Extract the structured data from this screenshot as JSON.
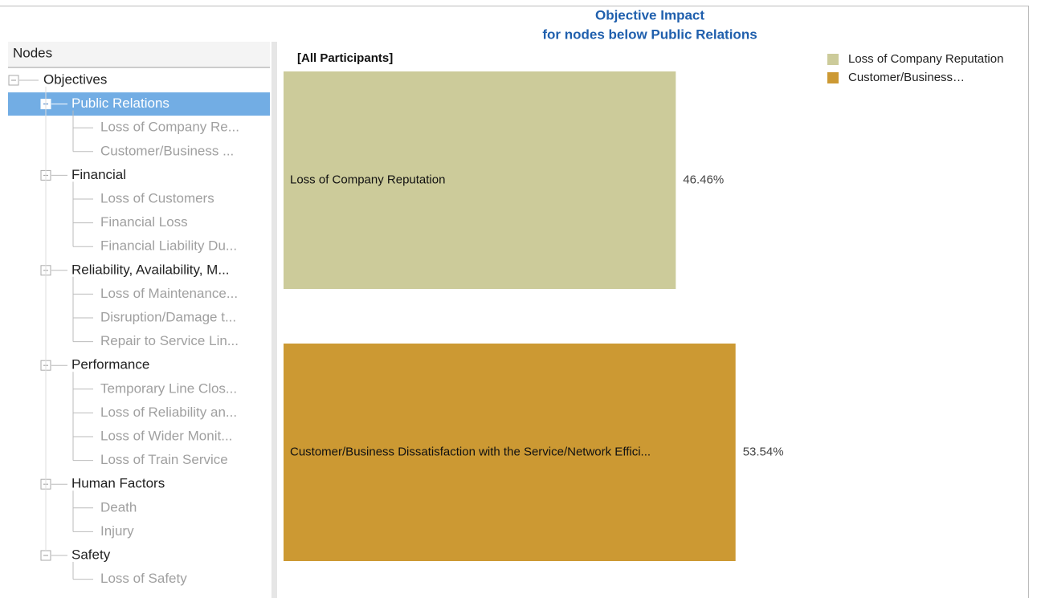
{
  "panel": {
    "header": "Nodes"
  },
  "tree": {
    "root": "Objectives",
    "selected_group": 0,
    "groups": [
      {
        "label": "Public Relations",
        "children": [
          "Loss of Company Re...",
          "Customer/Business ..."
        ]
      },
      {
        "label": "Financial",
        "children": [
          "Loss of Customers",
          "Financial Loss",
          "Financial Liability Du..."
        ]
      },
      {
        "label": "Reliability, Availability, M...",
        "children": [
          "Loss of Maintenance...",
          "Disruption/Damage t...",
          "Repair to Service Lin..."
        ]
      },
      {
        "label": "Performance",
        "children": [
          "Temporary Line Clos...",
          "Loss of Reliability an...",
          "Loss of Wider Monit...",
          "Loss of Train Service"
        ]
      },
      {
        "label": "Human Factors",
        "children": [
          "Death",
          "Injury"
        ]
      },
      {
        "label": "Safety",
        "children": [
          "Loss of Safety"
        ]
      }
    ]
  },
  "chart_data": {
    "type": "bar",
    "orientation": "horizontal",
    "title": "Objective Impact",
    "subtitle": "for nodes below Public Relations",
    "group_label": "[All Participants]",
    "categories": [
      "Loss of Company Reputation",
      "Customer/Business Dissatisfaction with the Service/Network Effici..."
    ],
    "values": [
      46.46,
      53.54
    ],
    "value_labels": [
      "46.46%",
      "53.54%"
    ],
    "colors": [
      "#cccb9a",
      "#cc9933"
    ],
    "legend": [
      "Loss of Company Reputation",
      "Customer/Business…"
    ]
  }
}
